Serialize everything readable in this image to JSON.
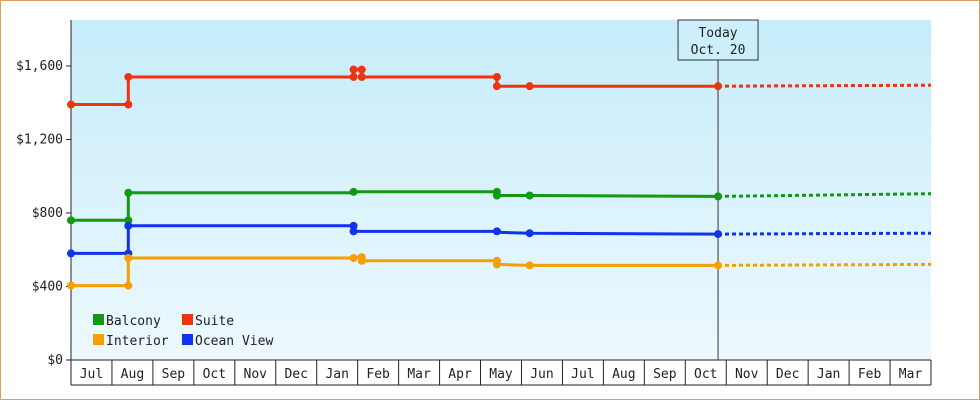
{
  "chart_data": {
    "type": "line",
    "title": "",
    "xlabel": "",
    "ylabel": "",
    "ylim": [
      0,
      1850
    ],
    "y_ticks": [
      "$0",
      "$400",
      "$800",
      "$1,200",
      "$1,600"
    ],
    "y_tick_values": [
      0,
      400,
      800,
      1200,
      1600
    ],
    "x_months": [
      "Jul",
      "Aug",
      "Sep",
      "Oct",
      "Nov",
      "Dec",
      "Jan",
      "Feb",
      "Mar",
      "Apr",
      "May",
      "Jun",
      "Jul",
      "Aug",
      "Sep",
      "Oct",
      "Nov",
      "Dec",
      "Jan",
      "Feb",
      "Mar"
    ],
    "x_month_index_range": [
      -0.5,
      20.5
    ],
    "grid": false,
    "legend_placement": "bottom-left",
    "today_marker": {
      "line1": "Today",
      "line2": "Oct. 20",
      "x": 15.3
    },
    "series": [
      {
        "name": "Suite",
        "color": "#ee3311",
        "points": [
          [
            -0.5,
            1390
          ],
          [
            0.9,
            1390
          ],
          [
            0.9,
            1540
          ],
          [
            6.4,
            1540
          ],
          [
            6.4,
            1580
          ],
          [
            6.6,
            1580
          ],
          [
            6.6,
            1540
          ],
          [
            9.9,
            1540
          ],
          [
            9.9,
            1490
          ],
          [
            10.7,
            1490
          ],
          [
            15.3,
            1490
          ]
        ],
        "markers": [
          [
            -0.5,
            1390
          ],
          [
            0.9,
            1390
          ],
          [
            0.9,
            1540
          ],
          [
            6.4,
            1540
          ],
          [
            6.4,
            1580
          ],
          [
            6.6,
            1580
          ],
          [
            6.6,
            1540
          ],
          [
            9.9,
            1540
          ],
          [
            9.9,
            1490
          ],
          [
            10.7,
            1490
          ],
          [
            15.3,
            1490
          ]
        ],
        "forecast": [
          [
            15.3,
            1490
          ],
          [
            20.5,
            1495
          ]
        ]
      },
      {
        "name": "Balcony",
        "color": "#119911",
        "points": [
          [
            -0.5,
            760
          ],
          [
            0.9,
            760
          ],
          [
            0.9,
            910
          ],
          [
            6.4,
            910
          ],
          [
            6.4,
            915
          ],
          [
            9.9,
            915
          ],
          [
            9.9,
            895
          ],
          [
            10.7,
            895
          ],
          [
            15.3,
            890
          ]
        ],
        "markers": [
          [
            -0.5,
            760
          ],
          [
            0.9,
            760
          ],
          [
            0.9,
            910
          ],
          [
            6.4,
            915
          ],
          [
            9.9,
            915
          ],
          [
            9.9,
            895
          ],
          [
            10.7,
            895
          ],
          [
            15.3,
            890
          ]
        ],
        "forecast": [
          [
            15.3,
            890
          ],
          [
            20.5,
            905
          ]
        ]
      },
      {
        "name": "Ocean View",
        "color": "#1133ee",
        "points": [
          [
            -0.5,
            580
          ],
          [
            0.9,
            580
          ],
          [
            0.9,
            730
          ],
          [
            6.4,
            730
          ],
          [
            6.4,
            700
          ],
          [
            9.9,
            700
          ],
          [
            9.9,
            695
          ],
          [
            10.7,
            690
          ],
          [
            15.3,
            685
          ]
        ],
        "markers": [
          [
            -0.5,
            580
          ],
          [
            0.9,
            580
          ],
          [
            0.9,
            730
          ],
          [
            6.4,
            730
          ],
          [
            6.4,
            700
          ],
          [
            9.9,
            700
          ],
          [
            10.7,
            690
          ],
          [
            15.3,
            685
          ]
        ],
        "forecast": [
          [
            15.3,
            685
          ],
          [
            20.5,
            690
          ]
        ]
      },
      {
        "name": "Interior",
        "color": "#f5a000",
        "points": [
          [
            -0.5,
            405
          ],
          [
            0.9,
            405
          ],
          [
            0.9,
            555
          ],
          [
            6.4,
            555
          ],
          [
            6.4,
            560
          ],
          [
            6.6,
            560
          ],
          [
            6.6,
            540
          ],
          [
            9.9,
            540
          ],
          [
            9.9,
            520
          ],
          [
            10.7,
            515
          ],
          [
            15.3,
            515
          ]
        ],
        "markers": [
          [
            -0.5,
            405
          ],
          [
            0.9,
            405
          ],
          [
            0.9,
            555
          ],
          [
            6.4,
            555
          ],
          [
            6.6,
            560
          ],
          [
            6.6,
            540
          ],
          [
            9.9,
            540
          ],
          [
            9.9,
            520
          ],
          [
            10.7,
            515
          ],
          [
            15.3,
            515
          ]
        ],
        "forecast": [
          [
            15.3,
            515
          ],
          [
            20.5,
            520
          ]
        ]
      }
    ],
    "legend": [
      {
        "name": "Balcony",
        "color": "#119911"
      },
      {
        "name": "Suite",
        "color": "#ee3311"
      },
      {
        "name": "Interior",
        "color": "#f5a000"
      },
      {
        "name": "Ocean View",
        "color": "#1133ee"
      }
    ]
  }
}
